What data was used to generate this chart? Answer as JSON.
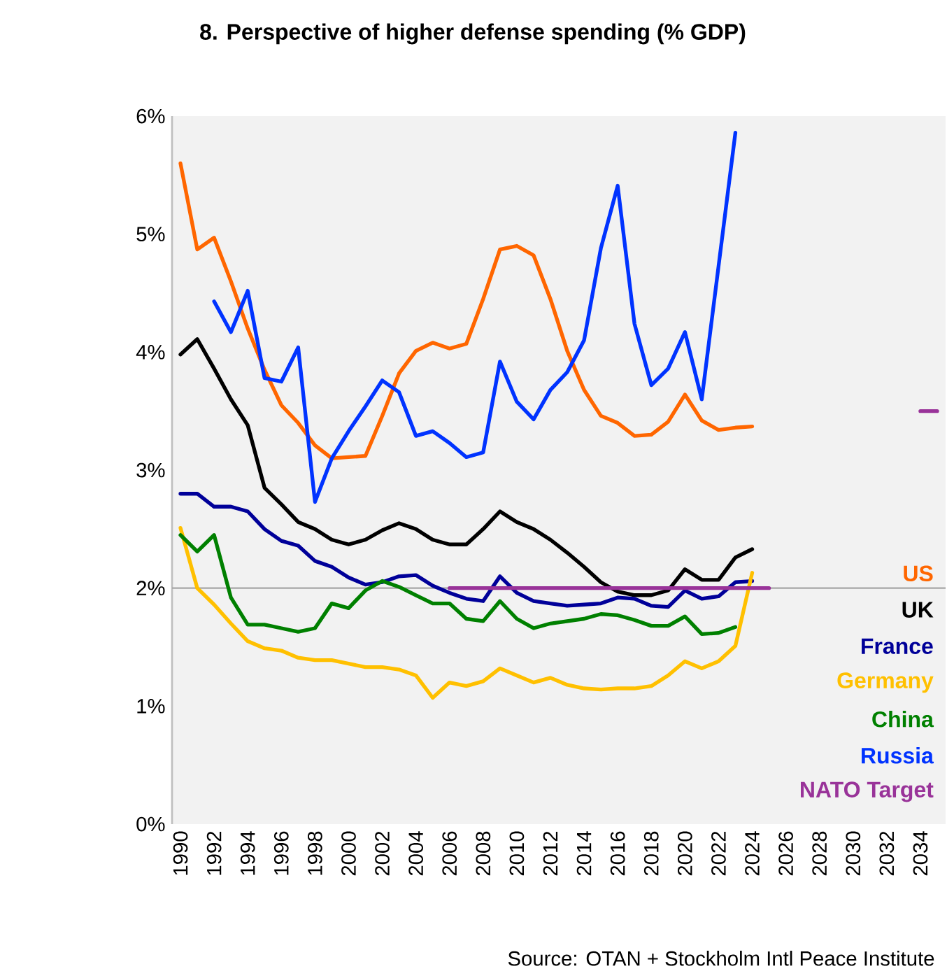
{
  "chart_data": {
    "type": "line",
    "title": "8. Perspective of higher defense spending (% GDP)",
    "annotations": [
      "Source: OTAN + Stockholm Intl Peace Institute"
    ],
    "x": [
      1990,
      1991,
      1992,
      1993,
      1994,
      1995,
      1996,
      1997,
      1998,
      1999,
      2000,
      2001,
      2002,
      2003,
      2004,
      2005,
      2006,
      2007,
      2008,
      2009,
      2010,
      2011,
      2012,
      2013,
      2014,
      2015,
      2016,
      2017,
      2018,
      2019,
      2020,
      2021,
      2022,
      2023,
      2024
    ],
    "xlim": [
      1989.5,
      2035.5
    ],
    "xticks": [
      1990,
      1992,
      1994,
      1996,
      1998,
      2000,
      2002,
      2004,
      2006,
      2008,
      2010,
      2012,
      2014,
      2016,
      2018,
      2020,
      2022,
      2024,
      2026,
      2028,
      2030,
      2032,
      2034
    ],
    "ylim": [
      0,
      6
    ],
    "yticks": [
      {
        "value": 0,
        "label": "0%"
      },
      {
        "value": 1,
        "label": "1%"
      },
      {
        "value": 2,
        "label": "2%"
      },
      {
        "value": 3,
        "label": "3%"
      },
      {
        "value": 4,
        "label": "4%"
      },
      {
        "value": 5,
        "label": "5%"
      },
      {
        "value": 6,
        "label": "6%"
      }
    ],
    "grid": false,
    "legend": "right",
    "line_style": "solid",
    "ref_lines": [
      {
        "axis": "y",
        "value": 2,
        "color": "#a6a6a6"
      }
    ],
    "series": [
      {
        "name": "US",
        "color": "#ff6600",
        "values": [
          5.6,
          4.87,
          4.97,
          4.6,
          4.2,
          3.85,
          3.55,
          3.4,
          3.21,
          3.1,
          3.11,
          3.12,
          3.46,
          3.82,
          4.01,
          4.08,
          4.03,
          4.07,
          4.45,
          4.87,
          4.9,
          4.82,
          4.45,
          4.01,
          3.68,
          3.46,
          3.4,
          3.29,
          3.3,
          3.41,
          3.64,
          3.42,
          3.34,
          3.36,
          3.37
        ]
      },
      {
        "name": "UK",
        "color": "#000000",
        "values": [
          3.98,
          4.11,
          3.86,
          3.6,
          3.38,
          2.85,
          2.71,
          2.56,
          2.5,
          2.41,
          2.37,
          2.41,
          2.49,
          2.55,
          2.5,
          2.41,
          2.37,
          2.37,
          2.5,
          2.65,
          2.56,
          2.5,
          2.41,
          2.3,
          2.18,
          2.05,
          1.97,
          1.94,
          1.94,
          1.98,
          2.16,
          2.07,
          2.07,
          2.26,
          2.33
        ]
      },
      {
        "name": "France",
        "color": "#000099",
        "values": [
          2.8,
          2.8,
          2.69,
          2.69,
          2.65,
          2.5,
          2.4,
          2.36,
          2.23,
          2.18,
          2.09,
          2.03,
          2.05,
          2.1,
          2.11,
          2.02,
          1.96,
          1.91,
          1.89,
          2.1,
          1.96,
          1.89,
          1.87,
          1.85,
          1.86,
          1.87,
          1.92,
          1.91,
          1.85,
          1.84,
          1.98,
          1.91,
          1.93,
          2.05,
          2.06
        ]
      },
      {
        "name": "Germany",
        "color": "#ffc000",
        "values": [
          2.51,
          2.0,
          1.86,
          1.7,
          1.55,
          1.49,
          1.47,
          1.41,
          1.39,
          1.39,
          1.36,
          1.33,
          1.33,
          1.31,
          1.26,
          1.07,
          1.2,
          1.17,
          1.21,
          1.32,
          1.26,
          1.2,
          1.24,
          1.18,
          1.15,
          1.14,
          1.15,
          1.15,
          1.17,
          1.26,
          1.38,
          1.32,
          1.38,
          1.51,
          2.13
        ]
      },
      {
        "name": "China",
        "color": "#008000",
        "x": [
          1990,
          1991,
          1992,
          1993,
          1994,
          1995,
          1996,
          1997,
          1998,
          1999,
          2000,
          2001,
          2002,
          2003,
          2004,
          2005,
          2006,
          2007,
          2008,
          2009,
          2010,
          2011,
          2012,
          2013,
          2014,
          2015,
          2016,
          2017,
          2018,
          2019,
          2020,
          2021,
          2022,
          2023
        ],
        "values": [
          2.45,
          2.31,
          2.45,
          1.92,
          1.69,
          1.69,
          1.66,
          1.63,
          1.66,
          1.87,
          1.83,
          1.98,
          2.06,
          2.01,
          1.94,
          1.87,
          1.87,
          1.74,
          1.72,
          1.89,
          1.74,
          1.66,
          1.7,
          1.72,
          1.74,
          1.78,
          1.77,
          1.73,
          1.68,
          1.68,
          1.76,
          1.61,
          1.62,
          1.67
        ]
      },
      {
        "name": "Russia",
        "color": "#0033ff",
        "x": [
          1992,
          1993,
          1994,
          1995,
          1996,
          1997,
          1998,
          1999,
          2000,
          2001,
          2002,
          2003,
          2004,
          2005,
          2006,
          2007,
          2008,
          2009,
          2010,
          2011,
          2012,
          2013,
          2014,
          2015,
          2016,
          2017,
          2018,
          2019,
          2020,
          2021,
          2022,
          2023
        ],
        "values": [
          4.43,
          4.17,
          4.52,
          3.78,
          3.75,
          4.04,
          2.73,
          3.1,
          3.33,
          3.54,
          3.76,
          3.66,
          3.29,
          3.33,
          3.23,
          3.11,
          3.15,
          3.92,
          3.58,
          3.43,
          3.68,
          3.83,
          4.1,
          4.88,
          5.41,
          4.24,
          3.72,
          3.86,
          4.17,
          3.6,
          4.73,
          5.86
        ]
      },
      {
        "name": "NATO Target",
        "color": "#993399",
        "x": [
          2006,
          2025,
          2030,
          2034,
          2035
        ],
        "values": [
          2,
          2,
          null,
          3.5,
          3.5
        ]
      }
    ]
  }
}
